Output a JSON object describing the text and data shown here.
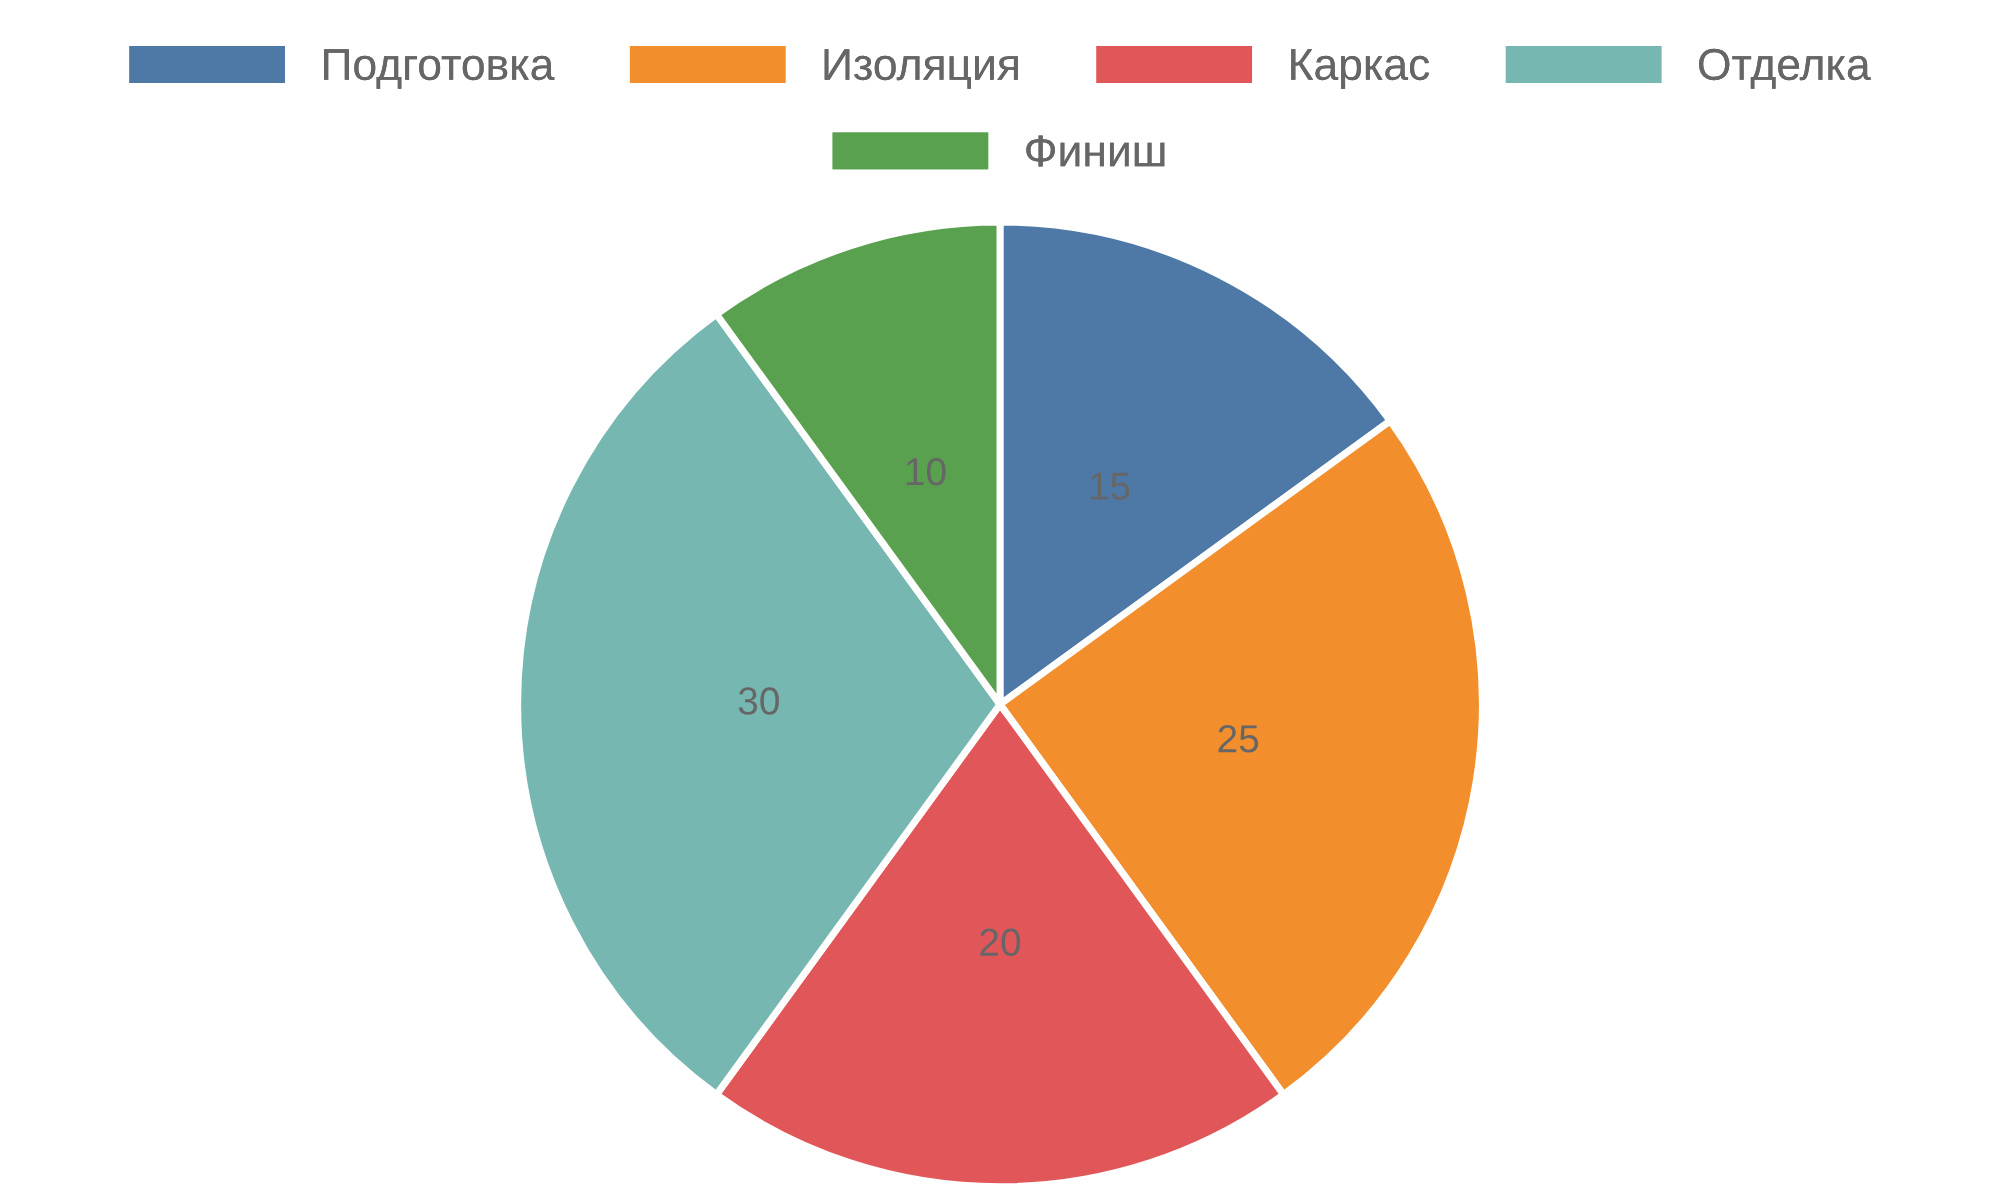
{
  "chart_data": {
    "type": "pie",
    "categories": [
      "Подготовка",
      "Изоляция",
      "Каркас",
      "Отделка",
      "Финиш"
    ],
    "values": [
      15,
      25,
      20,
      30,
      10
    ],
    "colors": [
      "#4e79a7",
      "#f28e2b",
      "#e15759",
      "#76b7b2",
      "#59a14f"
    ],
    "data_labels": true,
    "legend": "top"
  }
}
